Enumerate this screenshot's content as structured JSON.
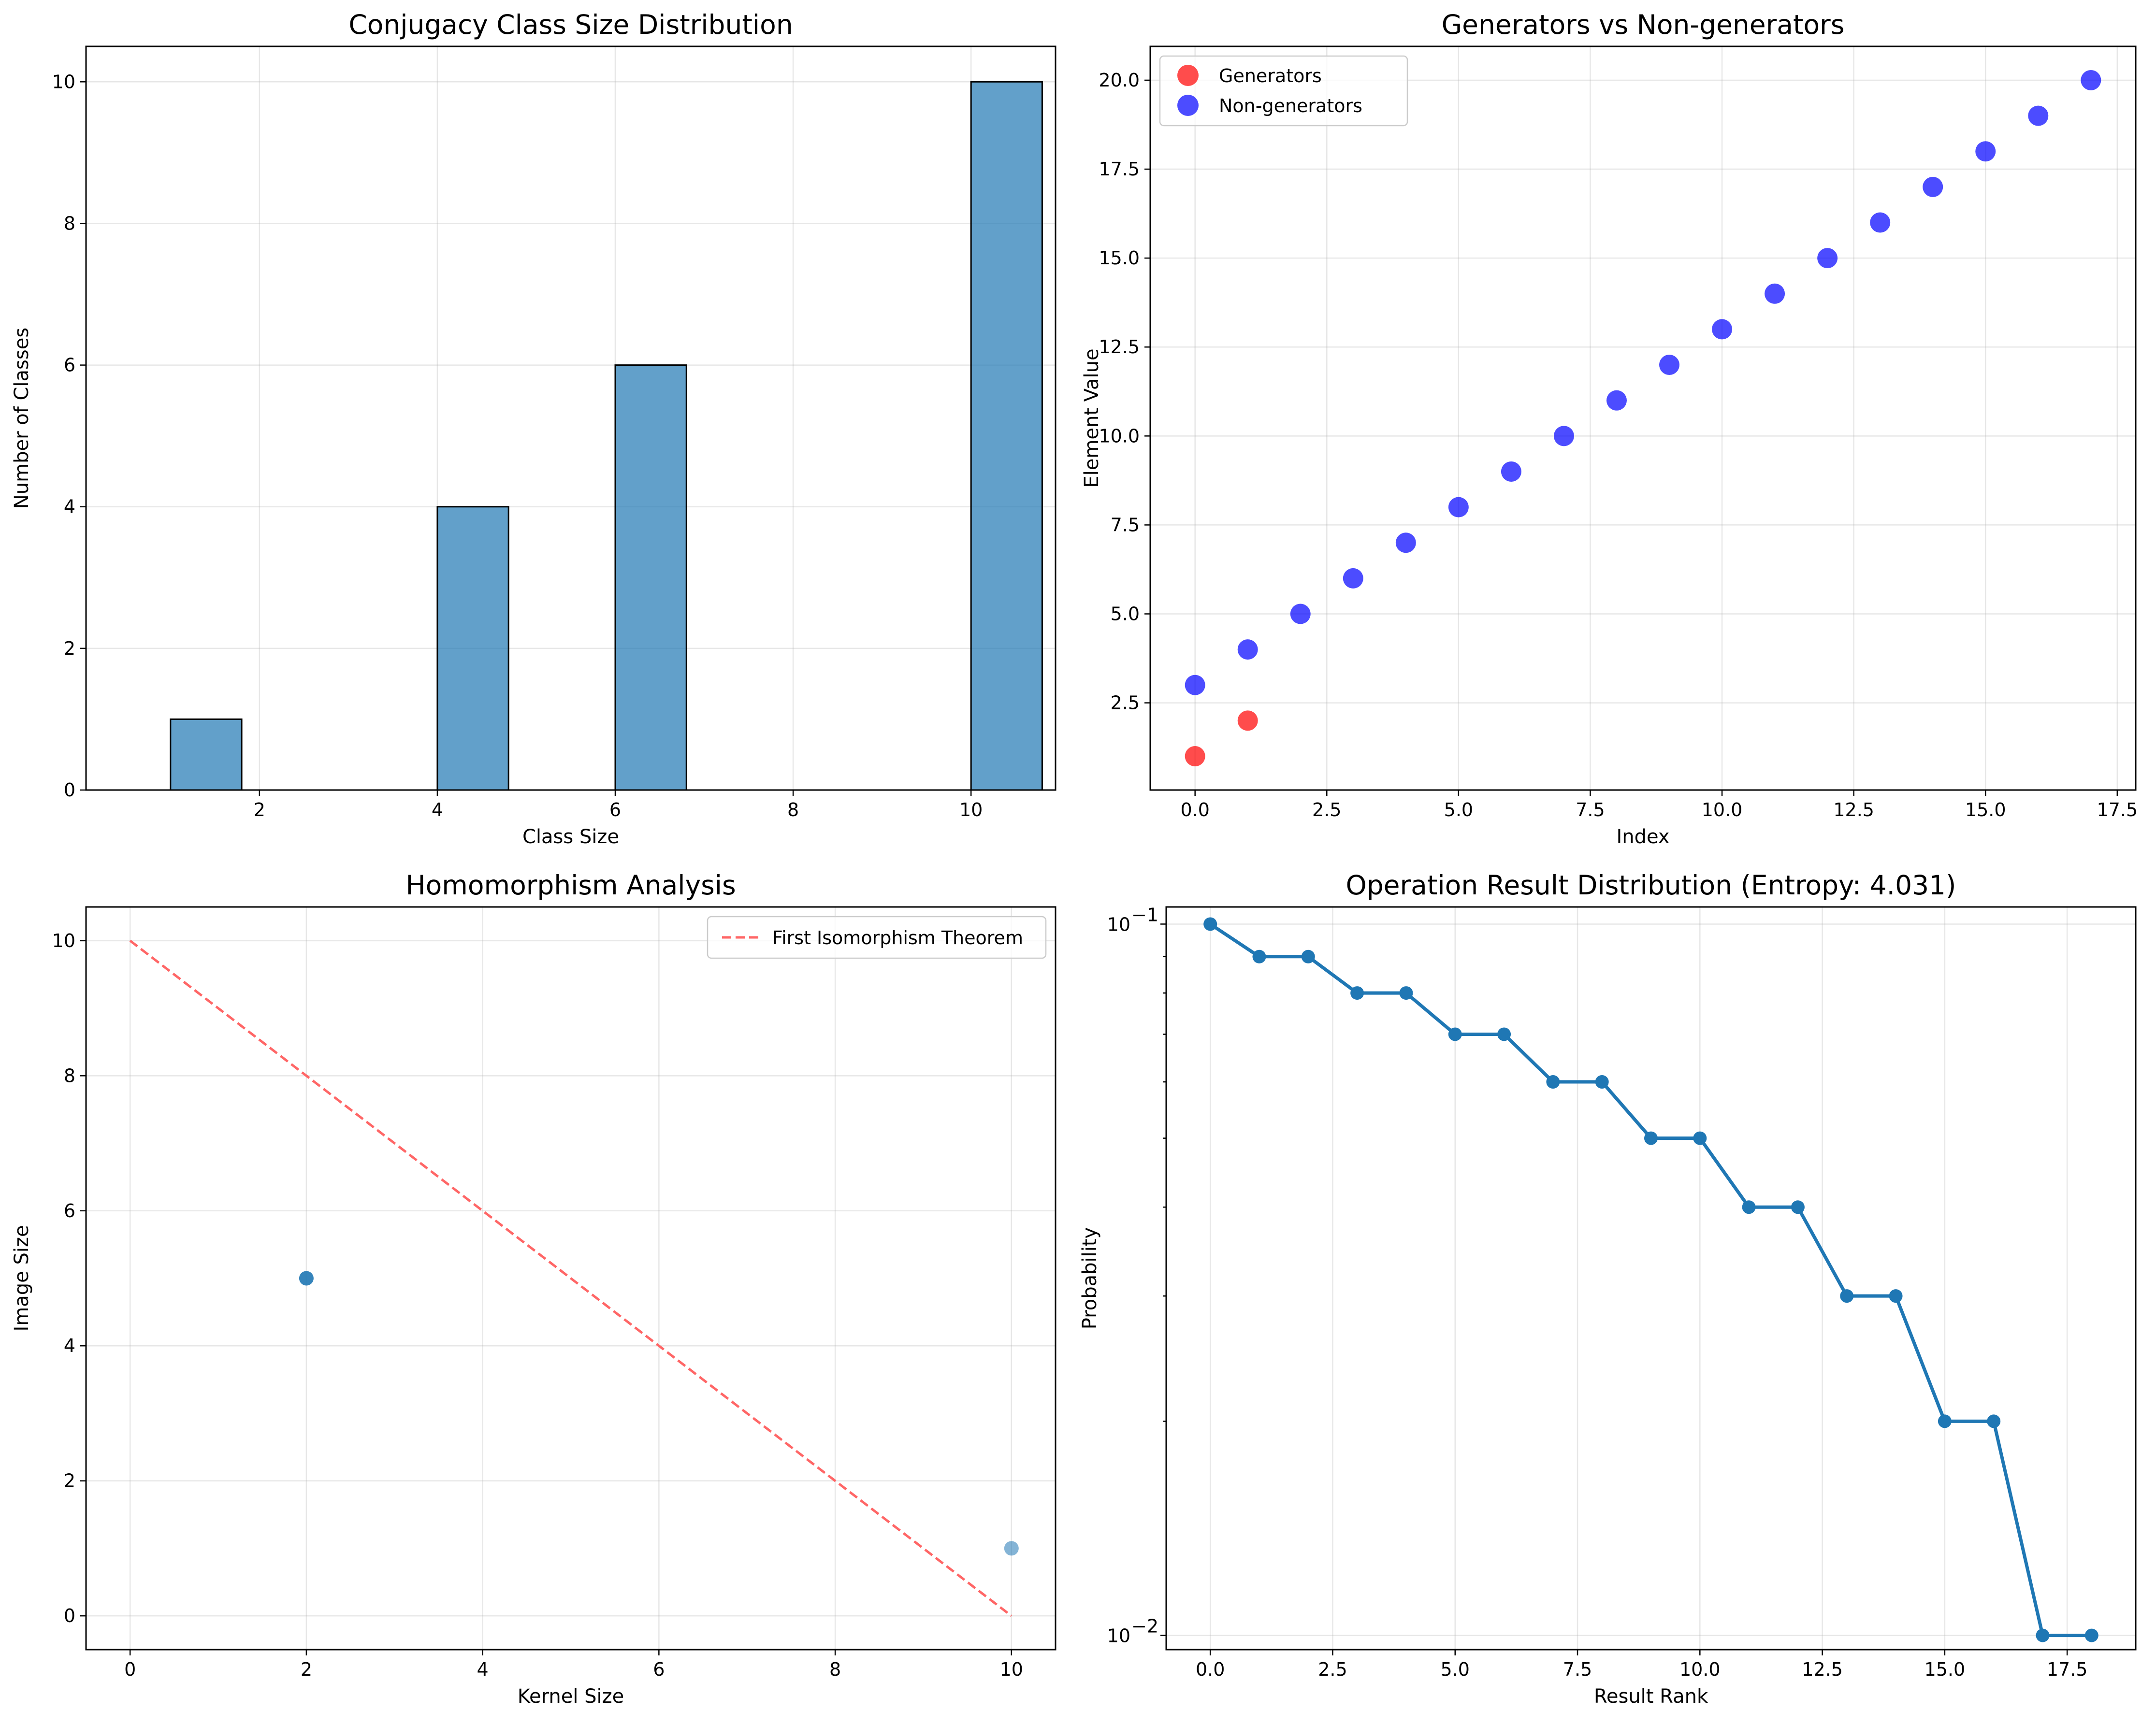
{
  "chart_data": [
    {
      "type": "bar",
      "title": "Conjugacy Class Size Distribution",
      "xlabel": "Class Size",
      "ylabel": "Number of Classes",
      "xlim": [
        0.05,
        10.95
      ],
      "ylim": [
        0,
        10.5
      ],
      "xticks": [
        2,
        4,
        6,
        8,
        10
      ],
      "yticks": [
        0,
        2,
        4,
        6,
        8,
        10
      ],
      "grid": true,
      "color": "#1f77b4",
      "bars": [
        {
          "x0": 1.0,
          "x1": 1.8,
          "value": 1
        },
        {
          "x0": 4.0,
          "x1": 4.8,
          "value": 4
        },
        {
          "x0": 6.0,
          "x1": 6.8,
          "value": 6
        },
        {
          "x0": 10.0,
          "x1": 10.8,
          "value": 10
        }
      ]
    },
    {
      "type": "scatter",
      "title": "Generators vs Non-generators",
      "xlabel": "Index",
      "ylabel": "Element Value",
      "xlim": [
        -0.85,
        17.85
      ],
      "ylim": [
        0.05,
        20.95
      ],
      "xticks": [
        0.0,
        2.5,
        5.0,
        7.5,
        10.0,
        12.5,
        15.0,
        17.5
      ],
      "yticks": [
        2.5,
        5.0,
        7.5,
        10.0,
        12.5,
        15.0,
        17.5,
        20.0
      ],
      "tick_decimals": 1,
      "grid": true,
      "legend_position": "top-left",
      "series": [
        {
          "name": "Generators",
          "color": "#ff0000",
          "x": [
            0,
            1
          ],
          "y": [
            1,
            2
          ]
        },
        {
          "name": "Non-generators",
          "color": "#0000ff",
          "x": [
            0,
            1,
            2,
            3,
            4,
            5,
            6,
            7,
            8,
            9,
            10,
            11,
            12,
            13,
            14,
            15,
            16,
            17
          ],
          "y": [
            3,
            4,
            5,
            6,
            7,
            8,
            9,
            10,
            11,
            12,
            13,
            14,
            15,
            16,
            17,
            18,
            19,
            20
          ]
        }
      ]
    },
    {
      "type": "scatter",
      "title": "Homomorphism Analysis",
      "xlabel": "Kernel Size",
      "ylabel": "Image Size",
      "xlim": [
        -0.5,
        10.5
      ],
      "ylim": [
        -0.5,
        10.5
      ],
      "xticks": [
        0,
        2,
        4,
        6,
        8,
        10
      ],
      "yticks": [
        0,
        2,
        4,
        6,
        8,
        10
      ],
      "grid": true,
      "legend_position": "top-right",
      "points": [
        {
          "x": 2,
          "y": 5,
          "color": "#1f77b4",
          "opacity": 0.9
        },
        {
          "x": 10,
          "y": 1,
          "color": "#1f77b4",
          "opacity": 0.55
        }
      ],
      "reference_line": {
        "name": "First Isomorphism Theorem",
        "color": "#ff6666",
        "x": [
          0,
          10
        ],
        "y": [
          10,
          0
        ]
      }
    },
    {
      "type": "line",
      "title": "Operation Result Distribution (Entropy: 4.031)",
      "xlabel": "Result Rank",
      "ylabel": "Probability",
      "yscale": "log",
      "xlim": [
        -0.9,
        18.9
      ],
      "ylim": [
        0.00955,
        0.1057
      ],
      "xticks": [
        0.0,
        2.5,
        5.0,
        7.5,
        10.0,
        12.5,
        15.0,
        17.5
      ],
      "tick_decimals": 1,
      "yticks_major": [
        0.1,
        0.01
      ],
      "yticks_major_labels": [
        {
          "base": "10",
          "exp": "−1"
        },
        {
          "base": "10",
          "exp": "−2"
        }
      ],
      "yticks_minor": [
        0.02,
        0.03,
        0.04,
        0.05,
        0.06,
        0.07,
        0.08,
        0.09
      ],
      "grid": true,
      "color": "#1f77b4",
      "x": [
        0,
        1,
        2,
        3,
        4,
        5,
        6,
        7,
        8,
        9,
        10,
        11,
        12,
        13,
        14,
        15,
        16,
        17,
        18
      ],
      "y": [
        0.1,
        0.09,
        0.09,
        0.08,
        0.08,
        0.07,
        0.07,
        0.06,
        0.06,
        0.05,
        0.05,
        0.04,
        0.04,
        0.03,
        0.03,
        0.02,
        0.02,
        0.01,
        0.01
      ]
    }
  ]
}
